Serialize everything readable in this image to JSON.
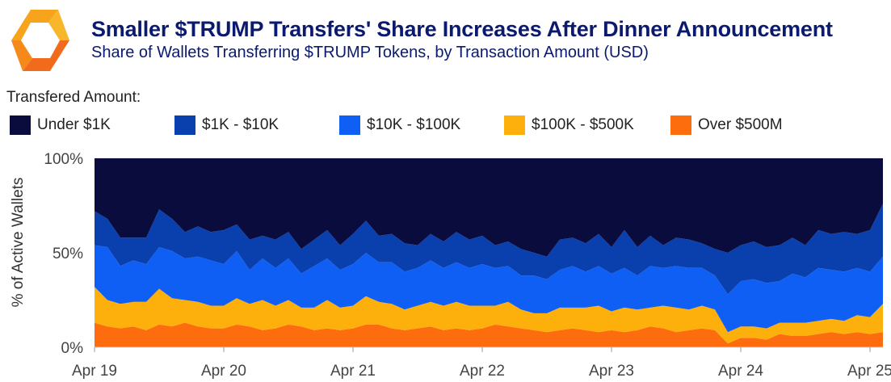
{
  "header": {
    "title": "Smaller $TRUMP Transfers' Share Increases After Dinner Announcement",
    "subtitle": "Share of Wallets Transferring $TRUMP Tokens, by Transaction Amount (USD)"
  },
  "legend": {
    "title": "Transfered Amount:",
    "placement": "top-left",
    "items": [
      {
        "label": "Under $1K",
        "color": "#0a0c3d"
      },
      {
        "label": "$1K - $10K",
        "color": "#0a3fae"
      },
      {
        "label": "$10K - $100K",
        "color": "#0f5ff5"
      },
      {
        "label": "$100K - $500K",
        "color": "#fdb00c"
      },
      {
        "label": "Over $500M",
        "color": "#fd6c0d"
      }
    ]
  },
  "logo": {
    "icon": "brand-logo-icon",
    "colors": [
      "#f7a31c",
      "#f26b1d"
    ]
  },
  "chart_data": {
    "type": "area",
    "stacked": true,
    "ylabel": "% of Active Wallets",
    "xlabel": "",
    "ylim": [
      0,
      100
    ],
    "yticks": [
      {
        "value": 0,
        "label": "0%"
      },
      {
        "value": 50,
        "label": "50%"
      },
      {
        "value": 100,
        "label": "100%"
      }
    ],
    "xlim": [
      0,
      6.1
    ],
    "xticks": [
      {
        "value": 0,
        "label": "Apr 19"
      },
      {
        "value": 1,
        "label": "Apr 20"
      },
      {
        "value": 2,
        "label": "Apr 21"
      },
      {
        "value": 3,
        "label": "Apr 22"
      },
      {
        "value": 4,
        "label": "Apr 23"
      },
      {
        "value": 5,
        "label": "Apr 24"
      },
      {
        "value": 6,
        "label": "Apr 25"
      }
    ],
    "grid": false,
    "x": [
      0,
      0.1,
      0.2,
      0.3,
      0.4,
      0.5,
      0.6,
      0.7,
      0.8,
      0.9,
      1.0,
      1.1,
      1.2,
      1.3,
      1.4,
      1.5,
      1.6,
      1.7,
      1.8,
      1.9,
      2.0,
      2.1,
      2.2,
      2.3,
      2.4,
      2.5,
      2.6,
      2.7,
      2.8,
      2.9,
      3.0,
      3.1,
      3.2,
      3.3,
      3.4,
      3.5,
      3.6,
      3.7,
      3.8,
      3.9,
      4.0,
      4.1,
      4.2,
      4.3,
      4.4,
      4.5,
      4.6,
      4.7,
      4.8,
      4.9,
      5.0,
      5.1,
      5.2,
      5.3,
      5.4,
      5.5,
      5.6,
      5.7,
      5.8,
      5.9,
      6.0,
      6.1
    ],
    "series": [
      {
        "name": "Over $500M",
        "color": "#fd6c0d",
        "values": [
          13,
          11,
          10,
          11,
          9,
          12,
          11,
          13,
          11,
          10,
          10,
          12,
          11,
          9,
          10,
          12,
          11,
          9,
          10,
          9,
          10,
          12,
          12,
          10,
          9,
          10,
          11,
          9,
          10,
          9,
          10,
          12,
          11,
          10,
          9,
          8,
          9,
          10,
          9,
          8,
          9,
          8,
          9,
          11,
          10,
          8,
          9,
          10,
          9,
          2,
          5,
          5,
          4,
          7,
          6,
          6,
          7,
          8,
          7,
          8,
          7,
          8
        ]
      },
      {
        "name": "$100K - $500K",
        "color": "#fdb00c",
        "values": [
          19,
          14,
          13,
          13,
          15,
          19,
          15,
          12,
          13,
          12,
          12,
          14,
          12,
          16,
          12,
          13,
          10,
          12,
          15,
          12,
          12,
          15,
          12,
          13,
          11,
          12,
          13,
          13,
          14,
          13,
          12,
          10,
          13,
          10,
          9,
          10,
          12,
          11,
          12,
          14,
          10,
          13,
          11,
          10,
          12,
          13,
          11,
          12,
          11,
          6,
          6,
          6,
          6,
          6,
          7,
          7,
          7,
          7,
          7,
          9,
          9,
          15
        ]
      },
      {
        "name": "$10K - $100K",
        "color": "#0f5ff5",
        "values": [
          22,
          28,
          20,
          22,
          20,
          22,
          25,
          22,
          24,
          24,
          22,
          25,
          18,
          22,
          20,
          22,
          18,
          22,
          22,
          20,
          22,
          23,
          21,
          22,
          20,
          20,
          22,
          20,
          21,
          20,
          22,
          20,
          19,
          18,
          20,
          18,
          20,
          22,
          19,
          21,
          20,
          21,
          18,
          22,
          20,
          22,
          22,
          20,
          18,
          20,
          24,
          25,
          24,
          22,
          26,
          24,
          28,
          26,
          26,
          25,
          24,
          25
        ]
      },
      {
        "name": "$1K - $10K",
        "color": "#0a3fae",
        "values": [
          18,
          15,
          15,
          12,
          14,
          20,
          17,
          14,
          16,
          15,
          18,
          14,
          16,
          12,
          15,
          14,
          13,
          14,
          15,
          13,
          16,
          17,
          14,
          15,
          15,
          12,
          14,
          14,
          16,
          15,
          15,
          12,
          13,
          14,
          12,
          12,
          16,
          15,
          15,
          17,
          14,
          20,
          15,
          16,
          12,
          15,
          15,
          13,
          14,
          22,
          19,
          20,
          19,
          19,
          19,
          17,
          20,
          19,
          21,
          18,
          22,
          28
        ]
      },
      {
        "name": "Under $1K",
        "color": "#0a0c3d",
        "values": [
          28,
          32,
          42,
          42,
          42,
          27,
          32,
          39,
          36,
          39,
          38,
          35,
          43,
          41,
          43,
          39,
          48,
          43,
          38,
          46,
          40,
          33,
          41,
          40,
          45,
          46,
          40,
          44,
          39,
          43,
          41,
          46,
          44,
          48,
          50,
          52,
          43,
          42,
          45,
          40,
          47,
          38,
          47,
          41,
          46,
          42,
          43,
          45,
          48,
          50,
          46,
          44,
          47,
          46,
          42,
          46,
          38,
          40,
          39,
          40,
          38,
          24
        ]
      }
    ]
  }
}
